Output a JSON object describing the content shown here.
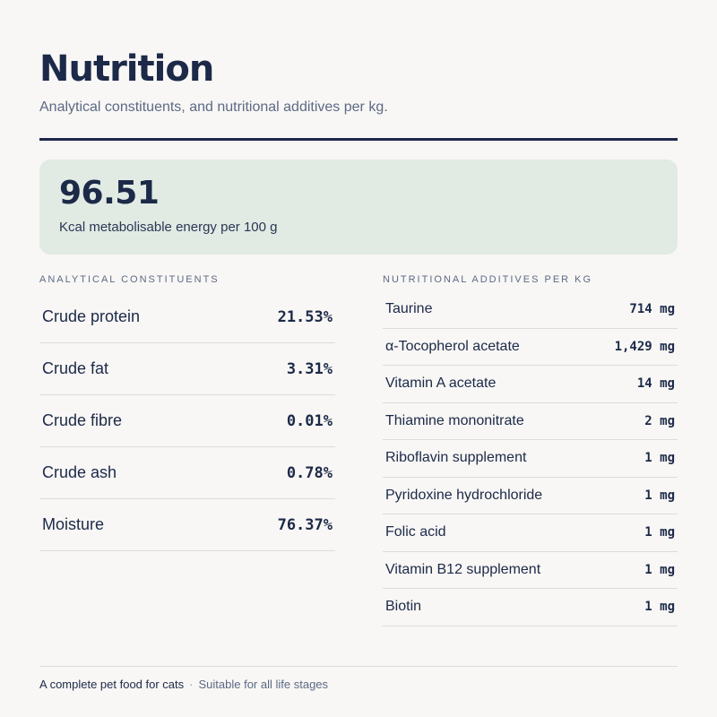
{
  "header": {
    "title": "Nutrition",
    "subtitle": "Analytical constituents, and nutritional additives per kg."
  },
  "energy": {
    "value": "96.51",
    "label": "Kcal metabolisable energy per 100 g"
  },
  "analytical": {
    "heading": "Analytical constituents",
    "rows": [
      {
        "label": "Crude protein",
        "value": "21.53%"
      },
      {
        "label": "Crude fat",
        "value": "3.31%"
      },
      {
        "label": "Crude fibre",
        "value": "0.01%"
      },
      {
        "label": "Crude ash",
        "value": "0.78%"
      },
      {
        "label": "Moisture",
        "value": "76.37%"
      }
    ]
  },
  "additives": {
    "heading": "Nutritional additives per kg",
    "rows": [
      {
        "label": "Taurine",
        "value": "714 mg"
      },
      {
        "label": "α-Tocopherol acetate",
        "value": "1,429 mg"
      },
      {
        "label": "Vitamin A acetate",
        "value": "14 mg"
      },
      {
        "label": "Thiamine mononitrate",
        "value": "2 mg"
      },
      {
        "label": "Riboflavin supplement",
        "value": "1 mg"
      },
      {
        "label": "Pyridoxine hydrochloride",
        "value": "1 mg"
      },
      {
        "label": "Folic acid",
        "value": "1 mg"
      },
      {
        "label": "Vitamin B12 supplement",
        "value": "1 mg"
      },
      {
        "label": "Biotin",
        "value": "1 mg"
      }
    ]
  },
  "footer": {
    "primary": "A complete pet food for cats",
    "separator": "·",
    "secondary": "Suitable for all life stages"
  },
  "colors": {
    "ink": "#1c2948",
    "muted": "#5d6985",
    "card": "#e1ebe4",
    "background": "#f8f7f5"
  }
}
